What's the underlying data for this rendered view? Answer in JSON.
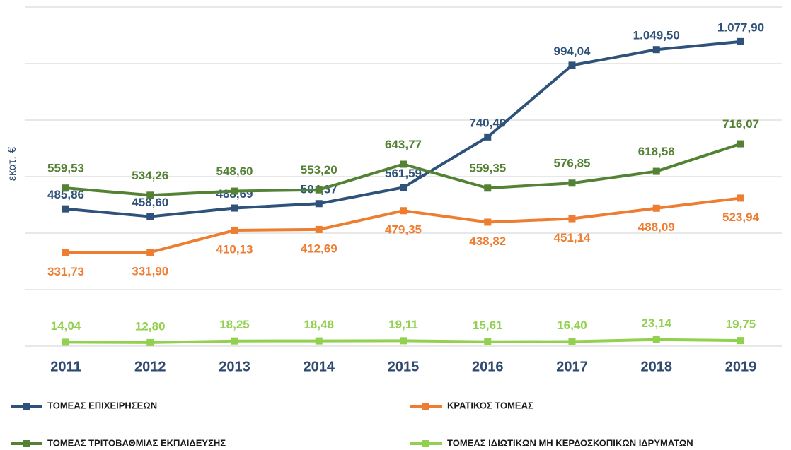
{
  "chart_data": {
    "type": "line",
    "y_label": "εκατ. €",
    "categories": [
      "2011",
      "2012",
      "2013",
      "2014",
      "2015",
      "2016",
      "2017",
      "2018",
      "2019"
    ],
    "ylim": [
      0,
      1200
    ],
    "yticks": [
      0,
      200,
      400,
      600,
      800,
      1000,
      1200
    ],
    "grid": true,
    "series": [
      {
        "name": "ΤΟΜΕΑΣ ΕΠΙΧΕΙΡΗΣΕΩΝ",
        "color": "#2e5279",
        "values": [
          485.86,
          458.6,
          488.69,
          504.37,
          561.59,
          740.4,
          994.04,
          1049.5,
          1077.9
        ],
        "value_labels": [
          "485,86",
          "458,60",
          "488,69",
          "504,37",
          "561,59",
          "740,40",
          "994,04",
          "1.049,50",
          "1.077,90"
        ]
      },
      {
        "name": "ΚΡΑΤΙΚΟΣ ΤΟΜΕΑΣ",
        "color": "#ed7d31",
        "values": [
          331.73,
          331.9,
          410.13,
          412.69,
          479.35,
          438.82,
          451.14,
          488.09,
          523.94
        ],
        "value_labels": [
          "331,73",
          "331,90",
          "410,13",
          "412,69",
          "479,35",
          "438,82",
          "451,14",
          "488,09",
          "523,94"
        ]
      },
      {
        "name": "ΤΟΜΕΑΣ ΤΡΙΤΟΒΑΘΜΙΑΣ ΕΚΠΑΙΔΕΥΣΗΣ",
        "color": "#548235",
        "values": [
          559.53,
          534.26,
          548.6,
          553.2,
          643.77,
          559.35,
          576.85,
          618.58,
          716.07
        ],
        "value_labels": [
          "559,53",
          "534,26",
          "548,60",
          "553,20",
          "643,77",
          "559,35",
          "576,85",
          "618,58",
          "716,07"
        ]
      },
      {
        "name": "ΤΟΜΕΑΣ ΙΔΙΩΤΙΚΩΝ ΜΗ ΚΕΡΔΟΣΚΟΠΙΚΩΝ ΙΔΡΥΜΑΤΩΝ",
        "color": "#92d050",
        "values": [
          14.04,
          12.8,
          18.25,
          18.48,
          19.11,
          15.61,
          16.4,
          23.14,
          19.75
        ],
        "value_labels": [
          "14,04",
          "12,80",
          "18,25",
          "18,48",
          "19,11",
          "15,61",
          "16,40",
          "23,14",
          "19,75"
        ]
      }
    ]
  }
}
